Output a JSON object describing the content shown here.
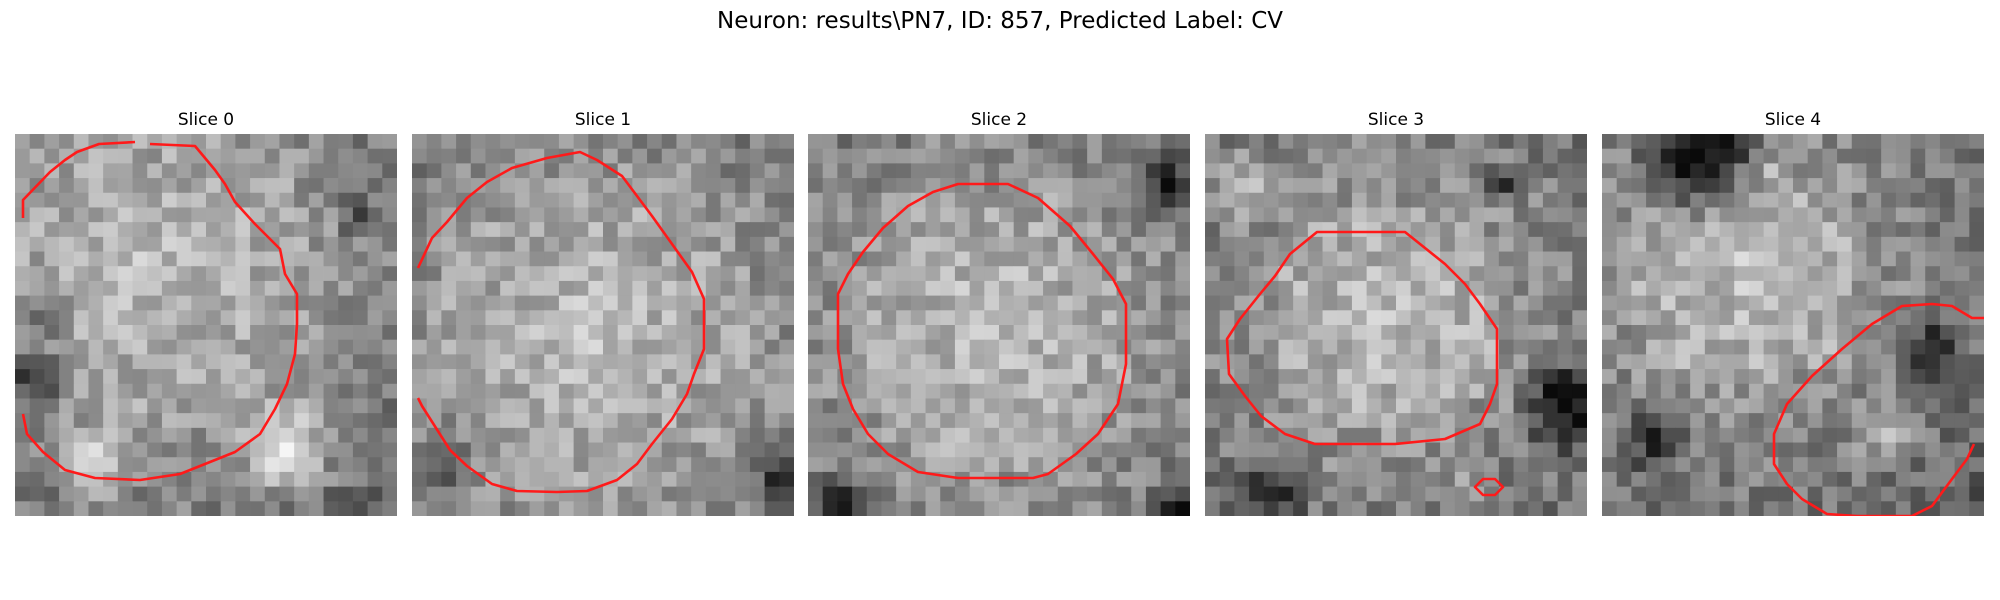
{
  "figure": {
    "title": "Neuron: results\\PN7, ID: 857, Predicted Label: CV"
  },
  "panels": [
    {
      "title": "Slice 0"
    },
    {
      "title": "Slice 1"
    },
    {
      "title": "Slice 2"
    },
    {
      "title": "Slice 3"
    },
    {
      "title": "Slice 4"
    }
  ],
  "colors": {
    "contour": "#ff1a1a",
    "background": "#ffffff"
  }
}
